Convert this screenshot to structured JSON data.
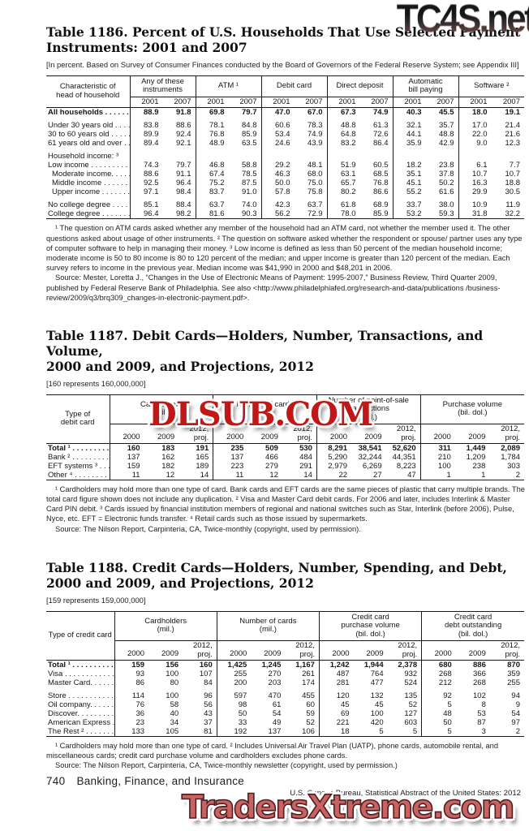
{
  "watermarks": {
    "top_right": "TC4S.net",
    "middle": "DLSUB.COM",
    "bottom": "TradersXtreme.com"
  },
  "footer": {
    "page_number": "740",
    "section_title": "Banking, Finance, and Insurance",
    "source_line": "U.S. Census Bureau, Statistical Abstract of the United States: 2012"
  },
  "table1186": {
    "title": [
      "Table 1186. Percent of U.S. Households That Use Selected Payment",
      "Instruments: 2001 and 2007"
    ],
    "bracket_note": "[In percent. Based on Survey of Consumer Finances conducted by the Board of Governors of the Federal Reserve System; see Appendix III]",
    "stub_header": [
      "Characteristic of",
      "head of household"
    ],
    "groups": [
      {
        "label": [
          "Any of these",
          "instruments"
        ],
        "years": [
          "2001",
          "2007"
        ]
      },
      {
        "label": [
          "ATM ¹"
        ],
        "years": [
          "2001",
          "2007"
        ]
      },
      {
        "label": [
          "Debit card"
        ],
        "years": [
          "2001",
          "2007"
        ]
      },
      {
        "label": [
          "Direct deposit"
        ],
        "years": [
          "2001",
          "2007"
        ]
      },
      {
        "label": [
          "Automatic",
          "bill paying"
        ],
        "years": [
          "2001",
          "2007"
        ]
      },
      {
        "label": [
          "Software ²"
        ],
        "years": [
          "2001",
          "2007"
        ]
      }
    ],
    "rows": [
      {
        "label": "All households . . . . . . .",
        "bold": true,
        "values": [
          "88.9",
          "91.8",
          "69.8",
          "79.7",
          "47.0",
          "67.0",
          "67.3",
          "74.9",
          "40.3",
          "45.5",
          "18.0",
          "19.1"
        ]
      },
      {
        "spacer": true
      },
      {
        "label": "Under 30 years old  . . . . . .",
        "values": [
          "83.8",
          "88.6",
          "78.1",
          "84.8",
          "60.6",
          "78.3",
          "48.8",
          "61.3",
          "32.1",
          "35.7",
          "17.0",
          "21.4"
        ]
      },
      {
        "label": "30 to 60 years old . . . . . . .",
        "values": [
          "89.9",
          "92.4",
          "76.8",
          "85.9",
          "53.4",
          "74.9",
          "64.8",
          "72.6",
          "44.1",
          "48.8",
          "22.0",
          "21.6"
        ]
      },
      {
        "label": "61 years old and over  . . . .",
        "values": [
          "89.4",
          "92.1",
          "48.9",
          "63.5",
          "24.6",
          "43.9",
          "83.2",
          "86.4",
          "35.9",
          "42.9",
          "9.0",
          "12.3"
        ]
      },
      {
        "spacer": true
      },
      {
        "label": "Household income: ³",
        "values": []
      },
      {
        "label": "Low income . . . . . . . . . . . .",
        "values": [
          "74.3",
          "79.7",
          "46.8",
          "58.8",
          "29.2",
          "48.1",
          "51.9",
          "60.5",
          "18.2",
          "23.8",
          "6.1",
          "7.7"
        ]
      },
      {
        "label": "Moderate income. . . . . . .",
        "indent": true,
        "values": [
          "88.6",
          "91.1",
          "67.4",
          "78.5",
          "46.3",
          "68.0",
          "63.1",
          "68.5",
          "35.1",
          "37.8",
          "10.7",
          "10.7"
        ]
      },
      {
        "label": "Middle income . . . . . . . . .",
        "indent": true,
        "values": [
          "92.5",
          "96.4",
          "75.2",
          "87.5",
          "50.0",
          "75.0",
          "65.7",
          "76.8",
          "45.1",
          "50.2",
          "16.3",
          "18.8"
        ]
      },
      {
        "label": "Upper income  . . . . . . . . .",
        "indent": true,
        "values": [
          "97.1",
          "98.4",
          "83.7",
          "91.0",
          "57.8",
          "75.8",
          "80.2",
          "86.6",
          "55.2",
          "61.6",
          "29.9",
          "30.5"
        ]
      },
      {
        "spacer": true
      },
      {
        "label": "No college degree . . . . . . .",
        "values": [
          "85.1",
          "88.4",
          "63.7",
          "74.0",
          "42.3",
          "63.7",
          "61.8",
          "68.9",
          "33.7",
          "38.0",
          "10.9",
          "11.9"
        ]
      },
      {
        "label": "College degree  . . . . . . . . .",
        "values": [
          "96.4",
          "98.2",
          "81.6",
          "90.3",
          "56.2",
          "72.9",
          "78.0",
          "85.9",
          "53.2",
          "59.3",
          "31.8",
          "32.2"
        ]
      }
    ],
    "footnotes": [
      "¹ The question on ATM cards asked whether any member of the household had an ATM card, not whether the member used it. The other questions asked about usage of other instruments. ² The question on software asked whether the respondent or spouse/ partner uses any type of computer software to help in managing their money. ³ Low income is defined as less than 50 percent of the median household income; moderate income is 50 to 80 income is 80 to 120 percent of the median; and upper income is greater than 120 percent of the median.  Each survey refers to income in the previous year. Median income was $41,990 in 2000 and $48,201 in 2006.",
      "Source: Mester, Loretta J., “Changes in the Use of Electronic Means of Payment: 1995-2007,” Business Review, Third Quarter 2009, published by Federal Reserve Bank of Philadelphia. See also <http://www.philadelphiafed.org/research-and-data/publications /business-review/2009/q3/brq309_changes-in-electronic-payment.pdf>."
    ]
  },
  "table1187": {
    "title": [
      "Table 1187. Debit Cards—Holders, Number, Transactions, and Volume,",
      "2000 and 2009, and Projections, 2012"
    ],
    "bracket_note": "[160 represents 160,000,000]",
    "stub_header": [
      "Type of",
      "debit card"
    ],
    "groups": [
      {
        "label": [
          "Cardholders",
          "(mil.)"
        ]
      },
      {
        "label": [
          "Number of cards",
          "(mil.)"
        ]
      },
      {
        "label": [
          "Number of point-of-sale",
          "transactions",
          "(mil.)"
        ]
      },
      {
        "label": [
          "Purchase volume",
          "(bil. dol.)"
        ]
      }
    ],
    "sub_years": [
      "2000",
      "2009"
    ],
    "proj_header": [
      "2012,",
      "proj."
    ],
    "rows": [
      {
        "label": "Total ¹  . . . . . . . . . .",
        "bold": true,
        "values": [
          "160",
          "183",
          "191",
          "235",
          "509",
          "530",
          "8,291",
          "38,541",
          "52,620",
          "311",
          "1,449",
          "2,089"
        ]
      },
      {
        "label": "Bank ² . . . . . . . . . . .",
        "values": [
          "137",
          "162",
          "165",
          "137",
          "466",
          "484",
          "5,290",
          "32,244",
          "44,351",
          "210",
          "1,209",
          "1,784"
        ]
      },
      {
        "label": "EFT systems ³ . . . . .",
        "values": [
          "159",
          "182",
          "189",
          "223",
          "279",
          "291",
          "2,979",
          "6,269",
          "8,223",
          "100",
          "238",
          "303"
        ]
      },
      {
        "label": "Other ⁴ . . . . . . . . . . .",
        "values": [
          "11",
          "12",
          "14",
          "11",
          "12",
          "14",
          "22",
          "27",
          "47",
          "1",
          "1",
          "2"
        ]
      }
    ],
    "footnotes": [
      "¹ Cardholders may hold more than one type of card. Bank cards and EFT cards are the same pieces of plastic that carry multiple brands. The total card figure shown does not include any duplication. ² Visa and Master Card debit cards. For 2006 and later, includes Interlink & Master Card PIN debit. ³ Cards issued by financial institution members of regional and national switches such as Star, Interlink (before 2006), Pulse, Nyce, etc. EFT = Electronic funds transfer. ⁴ Retail cards such as those issued by supermarkets.",
      "Source: The Nilson Report, Carpinteria, CA, Twice-monthly (copyright, used by permission)."
    ]
  },
  "table1188": {
    "title": [
      "Table 1188. Credit Cards—Holders, Number, Spending, and Debt,",
      "2000 and 2009, and Projections, 2012"
    ],
    "bracket_note": "[159 represents 159,000,000]",
    "stub_header": [
      "Type of credit card"
    ],
    "groups": [
      {
        "label": [
          "Cardholders",
          "(mil.)"
        ]
      },
      {
        "label": [
          "Number of cards",
          "(mil.)"
        ]
      },
      {
        "label": [
          "Credit card",
          "purchase volume",
          "(bil. dol.)"
        ]
      },
      {
        "label": [
          "Credit card",
          "debt outstanding",
          "(bil. dol.)"
        ]
      }
    ],
    "sub_years": [
      "2000",
      "2009"
    ],
    "proj_header": [
      "2012,",
      "proj."
    ],
    "rows": [
      {
        "label": "Total ¹ . . . . . . . . . . .",
        "bold": true,
        "values": [
          "159",
          "156",
          "160",
          "1,425",
          "1,245",
          "1,167",
          "1,242",
          "1,944",
          "2,378",
          "680",
          "886",
          "870"
        ]
      },
      {
        "label": "Visa . . . . . . . . . . . . . .",
        "values": [
          "93",
          "100",
          "107",
          "255",
          "270",
          "261",
          "487",
          "764",
          "932",
          "268",
          "366",
          "359"
        ]
      },
      {
        "label": "Master Card. . . . . . . .",
        "values": [
          "86",
          "80",
          "84",
          "200",
          "203",
          "174",
          "281",
          "477",
          "524",
          "212",
          "268",
          "255"
        ]
      },
      {
        "spacer": true
      },
      {
        "label": "Store . . . . . . . . . . . . .",
        "values": [
          "114",
          "100",
          "96",
          "597",
          "470",
          "455",
          "120",
          "132",
          "135",
          "92",
          "102",
          "94"
        ]
      },
      {
        "label": "Oil company. . . . . . . .",
        "values": [
          "76",
          "58",
          "56",
          "98",
          "61",
          "60",
          "45",
          "45",
          "52",
          "5",
          "8",
          "9"
        ]
      },
      {
        "label": "Discover. . . . . . . . . . .",
        "values": [
          "36",
          "40",
          "43",
          "50",
          "54",
          "59",
          "69",
          "100",
          "127",
          "48",
          "53",
          "54"
        ]
      },
      {
        "label": "American Express . . .",
        "values": [
          "23",
          "34",
          "37",
          "33",
          "49",
          "52",
          "221",
          "420",
          "603",
          "50",
          "87",
          "97"
        ]
      },
      {
        "label": "The Rest ² . . . . . . . . .",
        "values": [
          "133",
          "105",
          "81",
          "192",
          "137",
          "106",
          "18",
          "5",
          "5",
          "5",
          "3",
          "2"
        ]
      }
    ],
    "footnotes": [
      "¹ Cardholders may hold more than one type of card. ² Includes Universal Air Travel Plan (UATP), phone cards, automobile rental, and miscellaneous cards; credit card purchase volume and cardholders excludes phone cards.",
      "Source: The Nilson Report, Carpinteria, CA, Twice-monthly newsletter (copyright, used by permission.)"
    ]
  }
}
